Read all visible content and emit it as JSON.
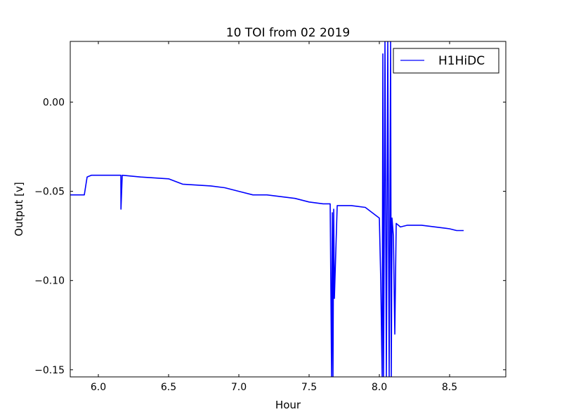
{
  "chart_data": {
    "type": "line",
    "title": "10 TOI from 02 2019",
    "xlabel": "Hour",
    "ylabel": "Output [v]",
    "xlim": [
      5.8,
      8.9
    ],
    "ylim": [
      -0.154,
      0.034
    ],
    "xticks": [
      6.0,
      6.5,
      7.0,
      7.5,
      8.0,
      8.5
    ],
    "xtick_labels": [
      "6.0",
      "6.5",
      "7.0",
      "7.5",
      "8.0",
      "8.5"
    ],
    "yticks": [
      0.0,
      -0.05,
      -0.1,
      -0.15
    ],
    "ytick_labels": [
      "0.00",
      "−0.05",
      "−0.10",
      "−0.15"
    ],
    "grid": false,
    "legend_position": "top-right",
    "series": [
      {
        "name": "H1HiDC",
        "color": "#0000ff",
        "x": [
          5.8,
          5.9,
          5.92,
          5.95,
          6.0,
          6.1,
          6.16,
          6.161,
          6.17,
          6.3,
          6.5,
          6.6,
          6.8,
          6.9,
          7.0,
          7.1,
          7.2,
          7.3,
          7.4,
          7.5,
          7.6,
          7.65,
          7.66,
          7.665,
          7.67,
          7.675,
          7.68,
          7.7,
          7.8,
          7.9,
          7.95,
          8.0,
          8.01,
          8.02,
          8.025,
          8.03,
          8.035,
          8.04,
          8.05,
          8.06,
          8.065,
          8.07,
          8.075,
          8.08,
          8.085,
          8.09,
          8.1,
          8.11,
          8.12,
          8.15,
          8.2,
          8.3,
          8.4,
          8.5,
          8.55,
          8.6
        ],
        "y": [
          -0.052,
          -0.052,
          -0.042,
          -0.041,
          -0.041,
          -0.041,
          -0.041,
          -0.06,
          -0.041,
          -0.042,
          -0.043,
          -0.046,
          -0.047,
          -0.048,
          -0.05,
          -0.052,
          -0.052,
          -0.053,
          -0.054,
          -0.056,
          -0.057,
          -0.057,
          -0.154,
          -0.062,
          -0.154,
          -0.06,
          -0.11,
          -0.058,
          -0.058,
          -0.059,
          -0.062,
          -0.065,
          -0.1,
          -0.154,
          0.027,
          -0.154,
          -0.066,
          0.034,
          -0.154,
          0.034,
          -0.065,
          -0.154,
          -0.066,
          0.034,
          -0.154,
          -0.065,
          -0.075,
          -0.13,
          -0.068,
          -0.07,
          -0.069,
          -0.069,
          -0.07,
          -0.071,
          -0.072,
          -0.072
        ]
      }
    ]
  }
}
